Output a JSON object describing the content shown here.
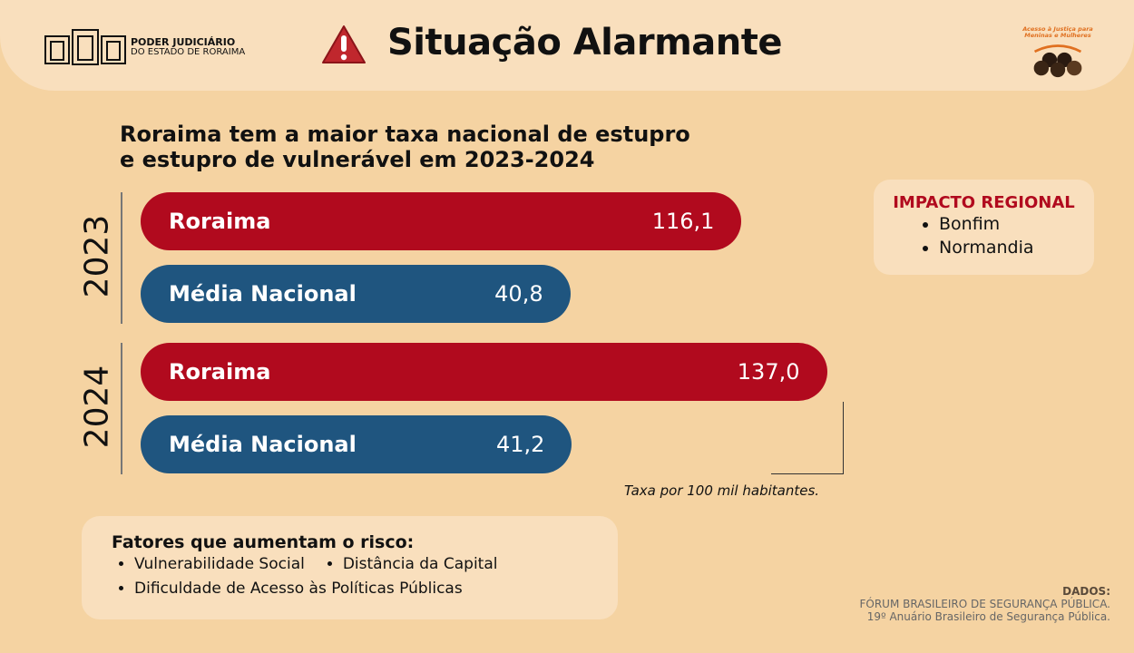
{
  "header": {
    "logo_line1": "PODER JUDICIÁRIO",
    "logo_line2": "DO ESTADO DE RORAIMA",
    "title": "Situação Alarmante",
    "partner_logo_text": "Acesso à Justiça para Meninas e Mulheres"
  },
  "chart_data": {
    "type": "bar",
    "orientation": "horizontal",
    "title": "Roraima tem a maior taxa nacional de estupro e estupro de vulnerável em 2023-2024",
    "title_line1": "Roraima tem a maior taxa nacional de estupro",
    "title_line2": "e estupro de vulnerável em 2023-2024",
    "groups": [
      {
        "year": "2023",
        "bars": [
          {
            "label": "Roraima",
            "value": 116.1,
            "display": "116,1",
            "color": "#b10a1e"
          },
          {
            "label": "Média Nacional",
            "value": 40.8,
            "display": "40,8",
            "color": "#1f557f"
          }
        ]
      },
      {
        "year": "2024",
        "bars": [
          {
            "label": "Roraima",
            "value": 137.0,
            "display": "137,0",
            "color": "#b10a1e"
          },
          {
            "label": "Média Nacional",
            "value": 41.2,
            "display": "41,2",
            "color": "#1f557f"
          }
        ]
      }
    ],
    "unit_note": "Taxa por 100 mil habitantes."
  },
  "impact": {
    "title": "IMPACTO REGIONAL",
    "items": [
      "Bonfim",
      "Normandia"
    ]
  },
  "factors": {
    "title": "Fatores que aumentam o risco:",
    "items": [
      "Vulnerabilidade Social",
      "Distância da Capital",
      "Dificuldade de Acesso às Políticas Públicas"
    ]
  },
  "source": {
    "label": "DADOS:",
    "line1": "FÓRUM BRASILEIRO DE SEGURANÇA PÚBLICA.",
    "line2": "19º Anuário Brasileiro de Segurança Pública."
  }
}
